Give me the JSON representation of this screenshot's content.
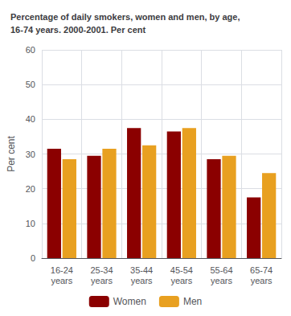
{
  "chart_data": {
    "type": "bar",
    "title": "Percentage of daily smokers, women and men, by age,\n16-74 years. 2000-2001. Per cent",
    "ylabel": "Per cent",
    "categories": [
      "16-24\nyears",
      "25-34\nyears",
      "35-44\nyears",
      "45-54\nyears",
      "55-64\nyears",
      "65-74\nyears"
    ],
    "series": [
      {
        "name": "Women",
        "color": "#8B0000",
        "values": [
          31.5,
          29.5,
          37.5,
          36.5,
          28.5,
          17.5
        ]
      },
      {
        "name": "Men",
        "color": "#E8A020",
        "values": [
          28.5,
          31.5,
          32.5,
          37.5,
          29.5,
          24.5
        ]
      }
    ],
    "ylim": [
      0,
      60
    ],
    "yticks": [
      0,
      10,
      20,
      30,
      40,
      50,
      60
    ],
    "grid": true,
    "legend": "bottom"
  }
}
